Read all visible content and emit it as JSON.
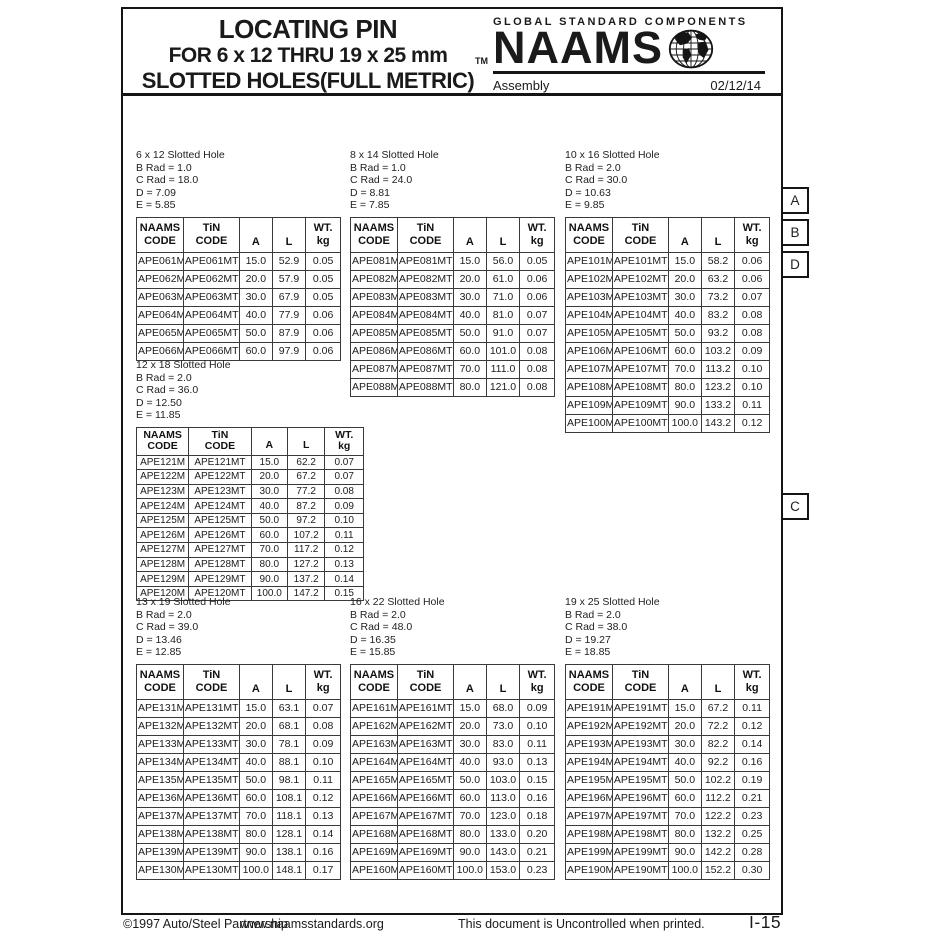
{
  "colors": {
    "ink": "#1a1a1a",
    "paper": "#ffffff"
  },
  "header": {
    "title_line1": "LOCATING PIN",
    "title_line2": "FOR 6 x 12 THRU 19 x 25 mm",
    "title_line3": "SLOTTED HOLES(FULL METRIC)",
    "trademark": "TM",
    "brand_top": "GLOBAL STANDARD COMPONENTS",
    "brand": "NAAMS",
    "globe_icon": "globe-icon",
    "category": "Assembly",
    "date": "02/12/14"
  },
  "side_labels": [
    "A",
    "B",
    "D",
    "C"
  ],
  "columns": [
    "NAAMS\nCODE",
    "TiN\nCODE",
    "A",
    "L",
    "WT.\nkg"
  ],
  "tables": [
    {
      "title": "6 x 12 Slotted Hole",
      "specs": [
        "B Rad = 1.0",
        "C Rad = 18.0",
        "D = 7.09",
        "E = 5.85"
      ],
      "rows": [
        [
          "APE061M",
          "APE061MT",
          "15.0",
          "52.9",
          "0.05"
        ],
        [
          "APE062M",
          "APE062MT",
          "20.0",
          "57.9",
          "0.05"
        ],
        [
          "APE063M",
          "APE063MT",
          "30.0",
          "67.9",
          "0.05"
        ],
        [
          "APE064M",
          "APE064MT",
          "40.0",
          "77.9",
          "0.06"
        ],
        [
          "APE065M",
          "APE065MT",
          "50.0",
          "87.9",
          "0.06"
        ],
        [
          "APE066M",
          "APE066MT",
          "60.0",
          "97.9",
          "0.06"
        ]
      ]
    },
    {
      "title": "8 x 14 Slotted Hole",
      "specs": [
        "B Rad = 1.0",
        "C Rad = 24.0",
        "D = 8.81",
        "E = 7.85"
      ],
      "rows": [
        [
          "APE081M",
          "APE081MT",
          "15.0",
          "56.0",
          "0.05"
        ],
        [
          "APE082M",
          "APE082MT",
          "20.0",
          "61.0",
          "0.06"
        ],
        [
          "APE083M",
          "APE083MT",
          "30.0",
          "71.0",
          "0.06"
        ],
        [
          "APE084M",
          "APE084MT",
          "40.0",
          "81.0",
          "0.07"
        ],
        [
          "APE085M",
          "APE085MT",
          "50.0",
          "91.0",
          "0.07"
        ],
        [
          "APE086M",
          "APE086MT",
          "60.0",
          "101.0",
          "0.08"
        ],
        [
          "APE087M",
          "APE087MT",
          "70.0",
          "111.0",
          "0.08"
        ],
        [
          "APE088M",
          "APE088MT",
          "80.0",
          "121.0",
          "0.08"
        ]
      ]
    },
    {
      "title": "10 x 16 Slotted Hole",
      "specs": [
        "B Rad = 2.0",
        "C Rad = 30.0",
        "D = 10.63",
        "E = 9.85"
      ],
      "rows": [
        [
          "APE101M",
          "APE101MT",
          "15.0",
          "58.2",
          "0.06"
        ],
        [
          "APE102M",
          "APE102MT",
          "20.0",
          "63.2",
          "0.06"
        ],
        [
          "APE103M",
          "APE103MT",
          "30.0",
          "73.2",
          "0.07"
        ],
        [
          "APE104M",
          "APE104MT",
          "40.0",
          "83.2",
          "0.08"
        ],
        [
          "APE105M",
          "APE105MT",
          "50.0",
          "93.2",
          "0.08"
        ],
        [
          "APE106M",
          "APE106MT",
          "60.0",
          "103.2",
          "0.09"
        ],
        [
          "APE107M",
          "APE107MT",
          "70.0",
          "113.2",
          "0.10"
        ],
        [
          "APE108M",
          "APE108MT",
          "80.0",
          "123.2",
          "0.10"
        ],
        [
          "APE109M",
          "APE109MT",
          "90.0",
          "133.2",
          "0.11"
        ],
        [
          "APE100M",
          "APE100MT",
          "100.0",
          "143.2",
          "0.12"
        ]
      ]
    },
    {
      "title": "12 x 18 Slotted Hole",
      "specs": [
        "B Rad = 2.0",
        "C Rad = 36.0",
        "D = 12.50",
        "E = 11.85"
      ],
      "rows": [
        [
          "APE121M",
          "APE121MT",
          "15.0",
          "62.2",
          "0.07"
        ],
        [
          "APE122M",
          "APE122MT",
          "20.0",
          "67.2",
          "0.07"
        ],
        [
          "APE123M",
          "APE123MT",
          "30.0",
          "77.2",
          "0.08"
        ],
        [
          "APE124M",
          "APE124MT",
          "40.0",
          "87.2",
          "0.09"
        ],
        [
          "APE125M",
          "APE125MT",
          "50.0",
          "97.2",
          "0.10"
        ],
        [
          "APE126M",
          "APE126MT",
          "60.0",
          "107.2",
          "0.11"
        ],
        [
          "APE127M",
          "APE127MT",
          "70.0",
          "117.2",
          "0.12"
        ],
        [
          "APE128M",
          "APE128MT",
          "80.0",
          "127.2",
          "0.13"
        ],
        [
          "APE129M",
          "APE129MT",
          "90.0",
          "137.2",
          "0.14"
        ],
        [
          "APE120M",
          "APE120MT",
          "100.0",
          "147.2",
          "0.15"
        ]
      ]
    },
    {
      "title": "13 x 19 Slotted Hole",
      "specs": [
        "B Rad = 2.0",
        "C Rad = 39.0",
        "D = 13.46",
        "E = 12.85"
      ],
      "rows": [
        [
          "APE131M",
          "APE131MT",
          "15.0",
          "63.1",
          "0.07"
        ],
        [
          "APE132M",
          "APE132MT",
          "20.0",
          "68.1",
          "0.08"
        ],
        [
          "APE133M",
          "APE133MT",
          "30.0",
          "78.1",
          "0.09"
        ],
        [
          "APE134M",
          "APE134MT",
          "40.0",
          "88.1",
          "0.10"
        ],
        [
          "APE135M",
          "APE135MT",
          "50.0",
          "98.1",
          "0.11"
        ],
        [
          "APE136M",
          "APE136MT",
          "60.0",
          "108.1",
          "0.12"
        ],
        [
          "APE137M",
          "APE137MT",
          "70.0",
          "118.1",
          "0.13"
        ],
        [
          "APE138M",
          "APE138MT",
          "80.0",
          "128.1",
          "0.14"
        ],
        [
          "APE139M",
          "APE139MT",
          "90.0",
          "138.1",
          "0.16"
        ],
        [
          "APE130M",
          "APE130MT",
          "100.0",
          "148.1",
          "0.17"
        ]
      ]
    },
    {
      "title": "16 x 22 Slotted Hole",
      "specs": [
        "B Rad = 2.0",
        "C Rad = 48.0",
        "D = 16.35",
        "E = 15.85"
      ],
      "rows": [
        [
          "APE161M",
          "APE161MT",
          "15.0",
          "68.0",
          "0.09"
        ],
        [
          "APE162M",
          "APE162MT",
          "20.0",
          "73.0",
          "0.10"
        ],
        [
          "APE163M",
          "APE163MT",
          "30.0",
          "83.0",
          "0.11"
        ],
        [
          "APE164M",
          "APE164MT",
          "40.0",
          "93.0",
          "0.13"
        ],
        [
          "APE165M",
          "APE165MT",
          "50.0",
          "103.0",
          "0.15"
        ],
        [
          "APE166M",
          "APE166MT",
          "60.0",
          "113.0",
          "0.16"
        ],
        [
          "APE167M",
          "APE167MT",
          "70.0",
          "123.0",
          "0.18"
        ],
        [
          "APE168M",
          "APE168MT",
          "80.0",
          "133.0",
          "0.20"
        ],
        [
          "APE169M",
          "APE169MT",
          "90.0",
          "143.0",
          "0.21"
        ],
        [
          "APE160M",
          "APE160MT",
          "100.0",
          "153.0",
          "0.23"
        ]
      ]
    },
    {
      "title": "19 x 25 Slotted Hole",
      "specs": [
        "B Rad = 2.0",
        "C Rad = 38.0",
        "D = 19.27",
        "E = 18.85"
      ],
      "rows": [
        [
          "APE191M",
          "APE191MT",
          "15.0",
          "67.2",
          "0.11"
        ],
        [
          "APE192M",
          "APE192MT",
          "20.0",
          "72.2",
          "0.12"
        ],
        [
          "APE193M",
          "APE193MT",
          "30.0",
          "82.2",
          "0.14"
        ],
        [
          "APE194M",
          "APE194MT",
          "40.0",
          "92.2",
          "0.16"
        ],
        [
          "APE195M",
          "APE195MT",
          "50.0",
          "102.2",
          "0.19"
        ],
        [
          "APE196M",
          "APE196MT",
          "60.0",
          "112.2",
          "0.21"
        ],
        [
          "APE197M",
          "APE197MT",
          "70.0",
          "122.2",
          "0.23"
        ],
        [
          "APE198M",
          "APE198MT",
          "80.0",
          "132.2",
          "0.25"
        ],
        [
          "APE199M",
          "APE199MT",
          "90.0",
          "142.2",
          "0.28"
        ],
        [
          "APE190M",
          "APE190MT",
          "100.0",
          "152.2",
          "0.30"
        ]
      ]
    }
  ],
  "footer": {
    "copyright": "©1997 Auto/Steel Partnership",
    "website": "www.naamsstandards.org",
    "notice": "This document is Uncontrolled when printed.",
    "page": "I-15"
  }
}
